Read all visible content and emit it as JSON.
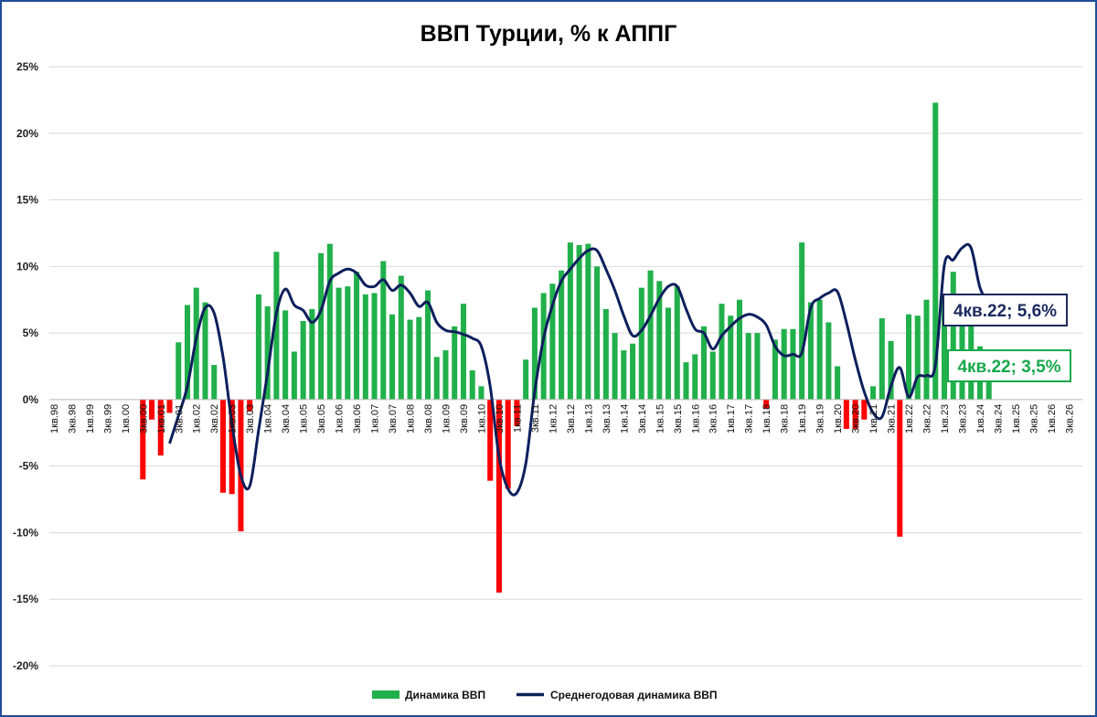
{
  "chart_data": {
    "type": "bar",
    "title": "ВВП Турции, % к АППГ",
    "y_ticks": [
      "25%",
      "20%",
      "15%",
      "10%",
      "5%",
      "0%",
      "-5%",
      "-10%",
      "-15%",
      "-20%"
    ],
    "ylim": [
      -20,
      25
    ],
    "grid": true,
    "x_tick_labels": [
      "1кв.98",
      "3кв.98",
      "1кв.99",
      "3кв.99",
      "1кв.00",
      "3кв.00",
      "1кв.01",
      "3кв.01",
      "1кв.02",
      "3кв.02",
      "1кв.03",
      "3кв.03",
      "1кв.04",
      "3кв.04",
      "1кв.05",
      "3кв.05",
      "1кв.06",
      "3кв.06",
      "1кв.07",
      "3кв.07",
      "1кв.08",
      "3кв.08",
      "1кв.09",
      "3кв.09",
      "1кв.10",
      "3кв.10",
      "1кв.11",
      "3кв.11",
      "1кв.12",
      "3кв.12",
      "1кв.13",
      "3кв.13",
      "1кв.14",
      "3кв.14",
      "1кв.15",
      "3кв.15",
      "1кв.16",
      "3кв.16",
      "1кв.17",
      "3кв.17",
      "1кв.18",
      "3кв.18",
      "1кв.19",
      "3кв.19",
      "1кв.20",
      "3кв.20",
      "1кв.21",
      "3кв.21",
      "1кв.22",
      "3кв.22",
      "1кв.23",
      "3кв.23",
      "1кв.24",
      "3кв.24",
      "1кв.25",
      "3кв.25",
      "1кв.26",
      "3кв.26"
    ],
    "n_quarters": 116,
    "series": [
      {
        "name": "Динамика ВВП",
        "kind": "bar",
        "color_positive": "#21b04b",
        "color_negative": "#ff0000",
        "values": [
          null,
          null,
          null,
          null,
          null,
          null,
          null,
          null,
          null,
          null,
          -6.0,
          -1.5,
          -4.2,
          -1.0,
          4.3,
          7.1,
          8.4,
          7.3,
          2.6,
          -7.0,
          -7.1,
          -9.9,
          -0.9,
          7.9,
          7.0,
          11.1,
          6.7,
          3.6,
          5.9,
          6.8,
          11.0,
          11.7,
          8.4,
          8.5,
          9.6,
          7.9,
          8.0,
          10.4,
          6.4,
          9.3,
          6.0,
          6.2,
          8.2,
          3.2,
          3.7,
          5.5,
          7.2,
          2.2,
          1.0,
          -6.1,
          -14.5,
          -6.7,
          -2.0,
          3.0,
          6.9,
          8.0,
          8.7,
          9.7,
          11.8,
          11.6,
          11.7,
          10.0,
          6.8,
          5.0,
          3.7,
          4.2,
          8.4,
          9.7,
          8.9,
          6.9,
          8.5,
          2.8,
          3.4,
          5.5,
          3.6,
          7.2,
          6.3,
          7.5,
          5.0,
          5.0,
          -0.7,
          4.5,
          5.3,
          5.3,
          11.8,
          7.3,
          7.5,
          5.8,
          2.5,
          -2.2,
          -2.2,
          -1.5,
          1.0,
          6.1,
          4.4,
          -10.3,
          6.4,
          6.3,
          7.5,
          22.3,
          7.9,
          9.6,
          7.6,
          7.8,
          4.0,
          3.5,
          null,
          null,
          null,
          null,
          null,
          null,
          null,
          null,
          null,
          null
        ]
      },
      {
        "name": "Среднегодовая динамика ВВП",
        "kind": "line",
        "color": "#0d1f5c",
        "values": [
          null,
          null,
          null,
          null,
          null,
          null,
          null,
          null,
          null,
          null,
          null,
          null,
          null,
          -3.3,
          -1.2,
          1.0,
          4.6,
          6.9,
          6.5,
          3.2,
          -1.8,
          -5.7,
          -6.5,
          -2.3,
          2.0,
          6.5,
          8.3,
          7.1,
          6.7,
          5.8,
          6.7,
          8.9,
          9.5,
          9.8,
          9.5,
          8.6,
          8.5,
          9.0,
          8.2,
          8.6,
          8.0,
          7.0,
          7.3,
          5.8,
          5.2,
          5.1,
          4.9,
          4.6,
          4.0,
          1.0,
          -4.3,
          -6.7,
          -7.0,
          -4.8,
          0.6,
          4.6,
          7.1,
          8.9,
          9.8,
          10.6,
          11.2,
          11.2,
          9.8,
          8.2,
          6.3,
          4.8,
          5.2,
          6.3,
          7.6,
          8.5,
          8.5,
          6.8,
          5.3,
          5.0,
          3.8,
          4.8,
          5.5,
          6.1,
          6.4,
          6.2,
          5.6,
          4.0,
          3.3,
          3.4,
          3.5,
          6.9,
          7.6,
          8.0,
          8.1,
          5.8,
          3.0,
          0.6,
          -1.0,
          -1.3,
          1.0,
          2.4,
          0.2,
          1.7,
          1.8,
          2.6,
          10.1,
          10.5,
          11.4,
          11.4,
          8.4,
          7.2,
          5.6,
          null,
          null,
          null,
          null,
          null,
          null,
          null,
          null,
          null,
          null
        ]
      }
    ],
    "annotations": [
      {
        "text": "4кв.22; 5,6%",
        "series": "Среднегодовая динамика ВВП"
      },
      {
        "text": "4кв.22; 3,5%",
        "series": "Динамика ВВП"
      }
    ],
    "legend_position": "bottom"
  }
}
